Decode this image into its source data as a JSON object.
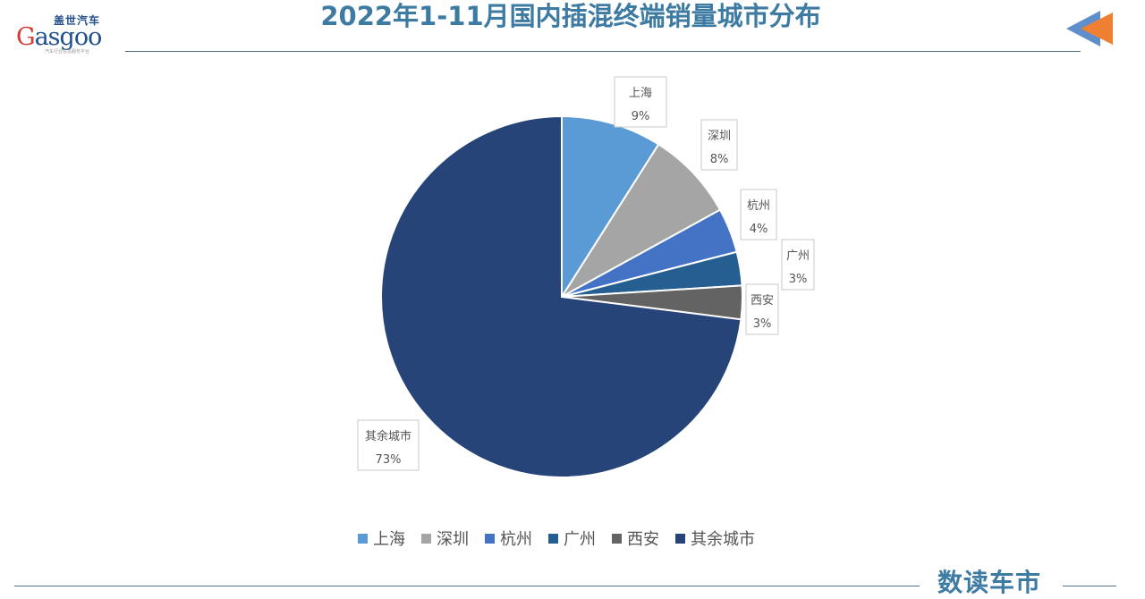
{
  "header": {
    "title": "2022年1-11月国内插混终端销量城市分布",
    "logo_cn": "盖世汽车",
    "logo_en_prefix": "G",
    "logo_en": "asgoo",
    "logo_sub": "汽车行业信息服务平台",
    "nav_icon": "back-arrow-icon"
  },
  "footer": {
    "brand": "数读车市"
  },
  "colors": {
    "title": "#3e7ba3",
    "上海": "#5b9bd5",
    "深圳": "#a5a5a5",
    "杭州": "#4472c4",
    "广州": "#255e91",
    "西安": "#636363",
    "其余城市": "#264478"
  },
  "chart_data": {
    "type": "pie",
    "title": "2022年1-11月国内插混终端销量城市分布",
    "categories": [
      "上海",
      "深圳",
      "杭州",
      "广州",
      "西安",
      "其余城市"
    ],
    "values": [
      9,
      8,
      4,
      3,
      3,
      73
    ],
    "value_labels": [
      "9%",
      "8%",
      "4%",
      "3%",
      "3%",
      "73%"
    ],
    "legend_position": "bottom",
    "start_angle": "12 o'clock, clockwise"
  }
}
